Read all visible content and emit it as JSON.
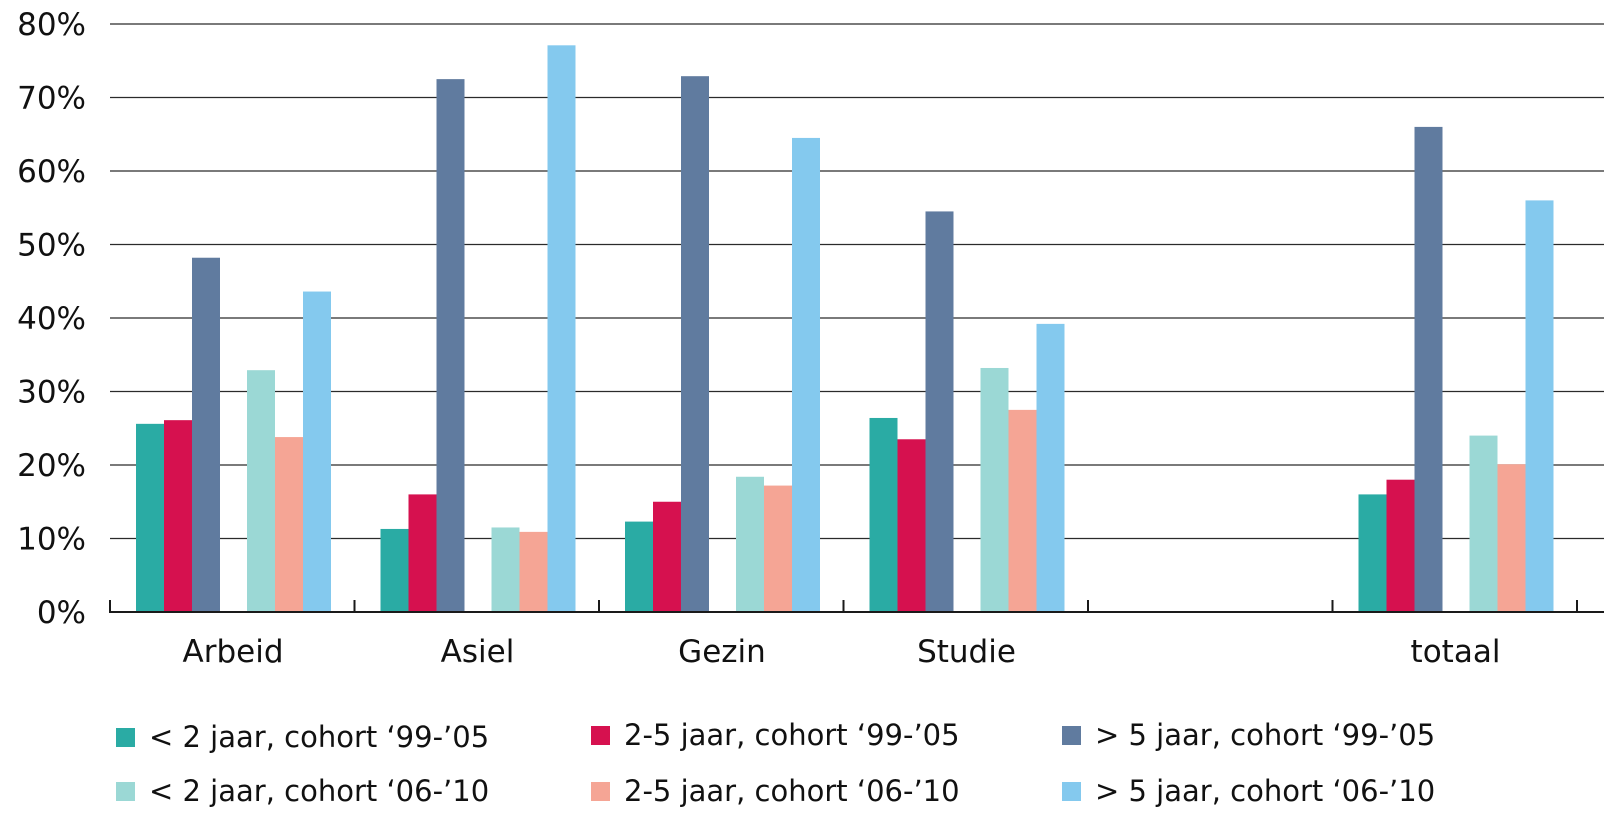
{
  "chart_data": {
    "type": "bar",
    "categories": [
      "Arbeid",
      "Asiel",
      "Gezin",
      "Studie",
      "",
      "totaal"
    ],
    "series": [
      {
        "name": "< 2  jaar, cohort ‘99-’05",
        "color": "#2aaba4",
        "values": [
          25.6,
          11.3,
          12.3,
          26.4,
          null,
          16.0
        ]
      },
      {
        "name": "2-5  jaar, cohort ‘99-’05",
        "color": "#d6114f",
        "values": [
          26.1,
          16.0,
          15.0,
          23.5,
          null,
          18.0
        ]
      },
      {
        "name": "> 5  jaar, cohort ‘99-’05",
        "color": "#607b9f",
        "values": [
          48.2,
          72.5,
          72.9,
          54.5,
          null,
          66.0
        ]
      },
      {
        "name": "< 2  jaar, cohort ‘06-’10",
        "color": "#9bd8d5",
        "values": [
          32.9,
          11.5,
          18.4,
          33.2,
          null,
          24.0
        ]
      },
      {
        "name": "2-5  jaar, cohort ‘06-’10",
        "color": "#f5a595",
        "values": [
          23.8,
          10.9,
          17.2,
          27.5,
          null,
          20.1
        ]
      },
      {
        "name": "> 5  jaar, cohort ‘06-’10",
        "color": "#84c9ee",
        "values": [
          43.6,
          77.1,
          64.5,
          39.2,
          null,
          56.0
        ]
      }
    ],
    "yticks": [
      "0%",
      "10%",
      "20%",
      "30%",
      "40%",
      "50%",
      "60%",
      "70%",
      "80%"
    ],
    "ylim": [
      0,
      80
    ],
    "grid": true,
    "legend_position": "bottom"
  }
}
